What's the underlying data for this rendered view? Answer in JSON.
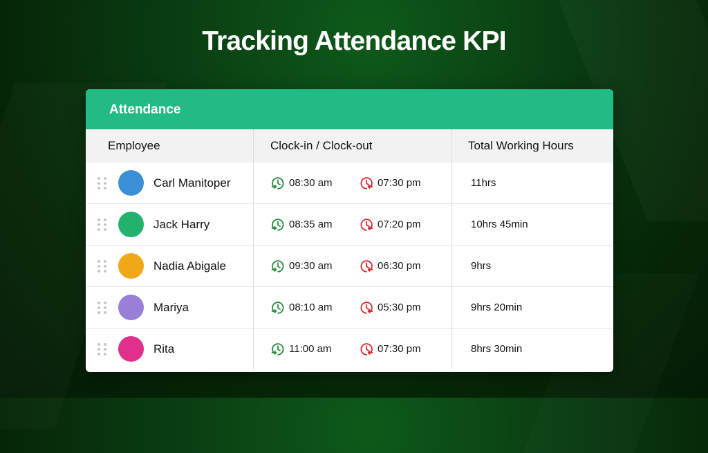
{
  "title": "Tracking Attendance KPI",
  "card": {
    "header": "Attendance",
    "columns": {
      "employee": "Employee",
      "clock": "Clock-in / Clock-out",
      "hours": "Total Working Hours"
    }
  },
  "colors": {
    "accent": "#22bb85",
    "clock_in": "#1f8a3e",
    "clock_out": "#d9252a"
  },
  "icons": {
    "clock_in": "clock-in-icon",
    "clock_out": "clock-out-icon",
    "drag": "drag-handle-icon"
  },
  "employees": [
    {
      "name": "Carl Manitoper",
      "clock_in": "08:30 am",
      "clock_out": "07:30 pm",
      "hours": "11hrs",
      "avatar_color": "#3b8fd6"
    },
    {
      "name": "Jack Harry",
      "clock_in": "08:35 am",
      "clock_out": "07:20 pm",
      "hours": "10hrs 45min",
      "avatar_color": "#23b26b"
    },
    {
      "name": "Nadia Abigale",
      "clock_in": "09:30 am",
      "clock_out": "06:30 pm",
      "hours": "9hrs",
      "avatar_color": "#f0a818"
    },
    {
      "name": "Mariya",
      "clock_in": "08:10 am",
      "clock_out": "05:30 pm",
      "hours": "9hrs 20min",
      "avatar_color": "#9a7fd6"
    },
    {
      "name": "Rita",
      "clock_in": "11:00 am",
      "clock_out": "07:30 pm",
      "hours": "8hrs 30min",
      "avatar_color": "#e0308c"
    }
  ]
}
